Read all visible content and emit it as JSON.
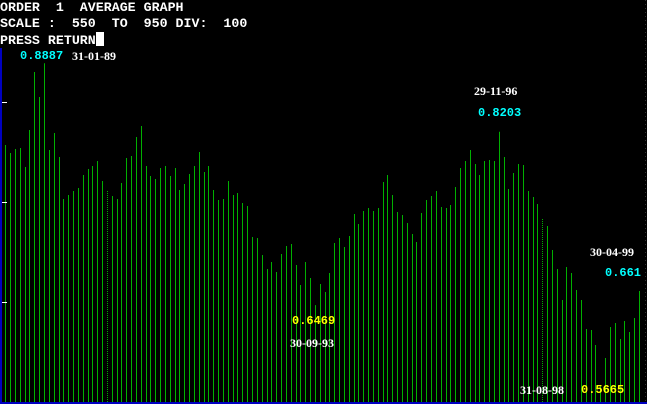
{
  "header": {
    "line1": "ORDER  1  AVERAGE GRAPH",
    "line2": "SCALE :  550  TO  950 DIV:  100",
    "prompt": "PRESS RETURN"
  },
  "chart_data": {
    "type": "bar",
    "title": "ORDER  1  AVERAGE GRAPH",
    "ylim": [
      550,
      950
    ],
    "y_div": 100,
    "grid": false,
    "colors": {
      "bars": "#00b000",
      "axis": "#0000c0",
      "ticks": "#ffffff",
      "value_high": "#00ffff",
      "value_low": "#ffff00",
      "date": "#ffffff"
    },
    "values": [
      0.807,
      0.799,
      0.803,
      0.804,
      0.785,
      0.822,
      0.88,
      0.855,
      0.8887,
      0.802,
      0.819,
      0.795,
      0.753,
      0.757,
      0.761,
      0.764,
      0.777,
      0.783,
      0.786,
      0.791,
      0.771,
      0.761,
      0.756,
      0.753,
      0.769,
      0.794,
      0.796,
      0.815,
      0.826,
      0.786,
      0.776,
      0.773,
      0.784,
      0.786,
      0.776,
      0.784,
      0.762,
      0.768,
      0.778,
      0.786,
      0.8,
      0.78,
      0.786,
      0.762,
      0.752,
      0.753,
      0.771,
      0.757,
      0.759,
      0.749,
      0.746,
      0.715,
      0.714,
      0.697,
      0.683,
      0.69,
      0.68,
      0.698,
      0.706,
      0.708,
      0.687,
      0.667,
      0.69,
      0.674,
      0.6469,
      0.668,
      0.66,
      0.679,
      0.709,
      0.714,
      0.705,
      0.716,
      0.738,
      0.728,
      0.741,
      0.744,
      0.741,
      0.744,
      0.77,
      0.777,
      0.757,
      0.74,
      0.737,
      0.729,
      0.718,
      0.71,
      0.739,
      0.752,
      0.756,
      0.761,
      0.745,
      0.744,
      0.747,
      0.765,
      0.784,
      0.791,
      0.802,
      0.788,
      0.777,
      0.791,
      0.792,
      0.791,
      0.8203,
      0.795,
      0.763,
      0.779,
      0.788,
      0.787,
      0.761,
      0.755,
      0.748,
      0.733,
      0.726,
      0.702,
      0.683,
      0.652,
      0.685,
      0.679,
      0.662,
      0.652,
      0.623,
      0.622,
      0.607,
      0.5665,
      0.594,
      0.625,
      0.629,
      0.613,
      0.631,
      0.62,
      0.634,
      0.661
    ],
    "annotations": [
      {
        "value": "0.8887",
        "date": "31-01-89"
      },
      {
        "value": "0.8203",
        "date": "29-11-96"
      },
      {
        "value": "0.661",
        "date": "30-04-99"
      },
      {
        "value": "0.6469",
        "date": "30-09-93"
      },
      {
        "value": "0.5665",
        "date": "31-08-98"
      }
    ]
  }
}
